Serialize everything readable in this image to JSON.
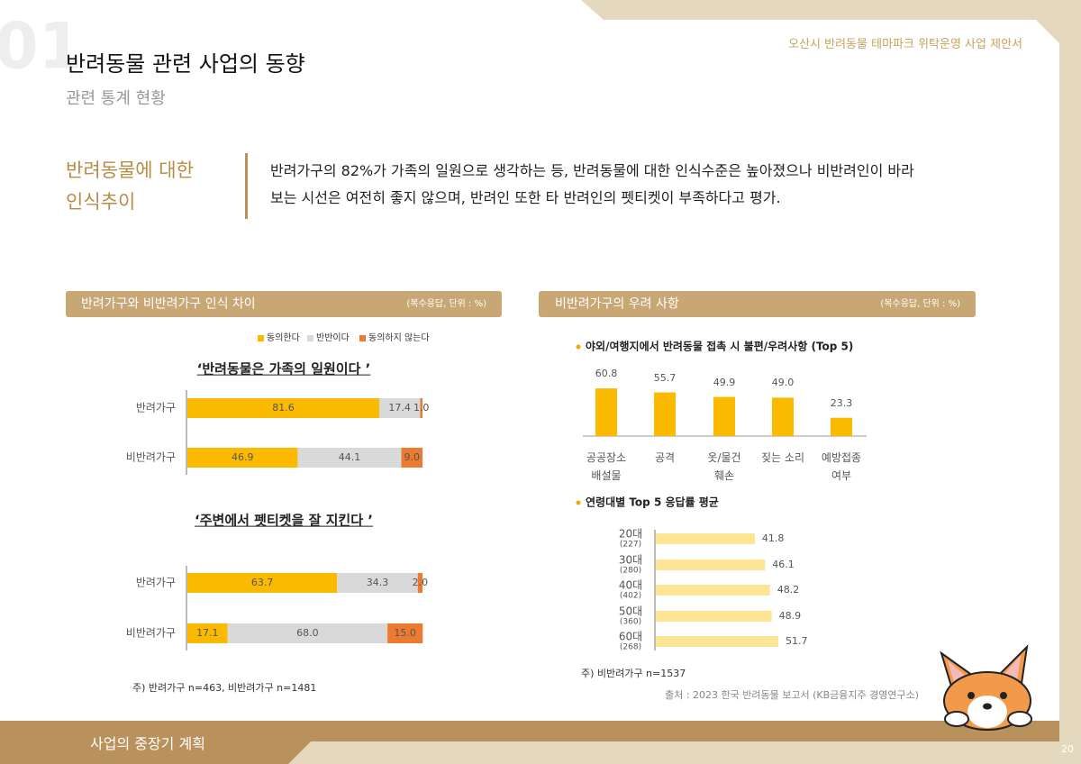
{
  "header": {
    "number": "01",
    "title": "반려동물 관련 사업의 동향",
    "subtitle": "관련 통계 현황",
    "doc_title": "오산시 반려동물 테마파크 위탁운영 사업 제안서"
  },
  "summary": {
    "heading_lines": [
      "반려동물에 대한",
      "인식추이"
    ],
    "text_lines": [
      "반려가구의 82%가 가족의 일원으로 생각하는 등, 반려동물에 대한 인식수준은 높아졌으나 비반려인이 바라",
      "보는 시선은 여전히 좋지 않으며, 반려인 또한 타 반려인의 펫티켓이 부족하다고 평가."
    ]
  },
  "panels": [
    {
      "title": "반려가구와 비반려가구 인식 차이",
      "unit_note": "(복수응답, 단위 : %)",
      "footnote": "주) 반려가구 n=463, 비반려가구 n=1481"
    },
    {
      "title": "비반려가구의 우려 사항",
      "unit_note": "(복수응답, 단위 : %)",
      "footnote": "주) 비반려가구 n=1537"
    }
  ],
  "source": "출처 : 2023 한국 반려동물 보고서 (KB금융지주 경영연구소)",
  "footer": {
    "section": "사업의 중장기 계획",
    "page": "20"
  },
  "chart_data": [
    {
      "type": "bar",
      "horizontal": true,
      "stacked": true,
      "title": "‘반려동물은 가족의 일원이다 ’",
      "categories": [
        "반려가구",
        "비반려가구"
      ],
      "series": [
        {
          "name": "동의한다",
          "color": "#fbb900",
          "values": [
            81.6,
            46.9
          ]
        },
        {
          "name": "반반이다",
          "color": "#d9d9d9",
          "values": [
            17.4,
            44.1
          ]
        },
        {
          "name": "동의하지 않는다",
          "color": "#ec7b31",
          "values": [
            1.0,
            9.0
          ],
          "value_labels": [
            "1.0",
            "9.0"
          ]
        }
      ]
    },
    {
      "type": "bar",
      "horizontal": true,
      "stacked": true,
      "title": "‘주변에서 펫티켓을 잘 지킨다 ’",
      "categories": [
        "반려가구",
        "비반려가구"
      ],
      "series": [
        {
          "color": "#fbb900",
          "values": [
            63.7,
            17.1
          ]
        },
        {
          "color": "#d9d9d9",
          "values": [
            34.3,
            68.0
          ],
          "value_labels": [
            "34.3",
            "68.0"
          ]
        },
        {
          "color": "#ec7b31",
          "values": [
            2.0,
            15.0
          ],
          "value_labels": [
            "2.0",
            "15.0"
          ]
        }
      ]
    },
    {
      "type": "bar",
      "title": "야외/여행지에서 반려동물 접촉 시 불편/우려사항 (Top 5)",
      "categories": [
        "공공장소\n배설물",
        "공격",
        "옷/물건\n훼손",
        "짖는 소리",
        "예방접종\n여부"
      ],
      "values": [
        60.8,
        55.7,
        49.9,
        49.0,
        23.3
      ],
      "value_labels": [
        "60.8",
        "55.7",
        "49.9",
        "49.0",
        "23.3"
      ],
      "color": "#fbb900"
    },
    {
      "type": "bar",
      "horizontal": true,
      "title": "연령대별 Top 5 응답률 평균",
      "categories": [
        "20대",
        "30대",
        "40대",
        "50대",
        "60대"
      ],
      "sample_sizes": [
        "(227)",
        "(280)",
        "(402)",
        "(360)",
        "(268)"
      ],
      "values": [
        41.8,
        46.1,
        48.2,
        48.9,
        51.7
      ],
      "color": "#fde594"
    }
  ]
}
